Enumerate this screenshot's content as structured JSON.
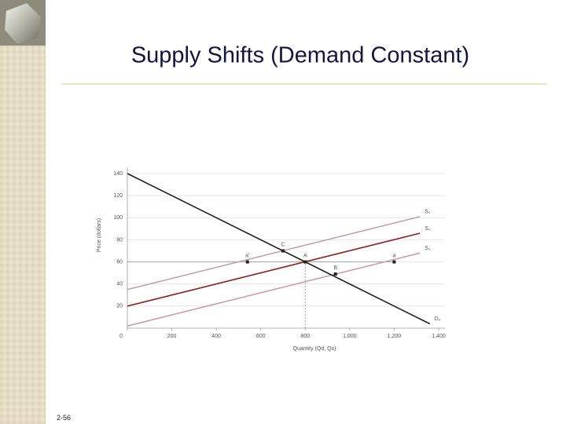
{
  "slide": {
    "title": "Supply Shifts (Demand Constant)",
    "page_number": "2-56"
  },
  "chart_data": {
    "type": "line",
    "x_label": "Quantity (Qd, Qs)",
    "y_label": "Price (dollars)",
    "xlim": [
      0,
      1400
    ],
    "ylim": [
      0,
      140
    ],
    "xticks": [
      0,
      200,
      400,
      600,
      800,
      {
        "value": 1000,
        "label": "1,000"
      },
      {
        "value": 1200,
        "label": "1,200"
      },
      {
        "value": 1400,
        "label": "1,400"
      }
    ],
    "yticks": [
      20,
      40,
      60,
      80,
      100,
      120,
      140
    ],
    "grid": true,
    "series": [
      {
        "color": "#9a9a9a",
        "x": [
          0,
          1200
        ],
        "values": [
          60,
          60
        ]
      },
      {
        "color": "#9a9a9a",
        "dashed": true,
        "x": [
          800,
          800
        ],
        "values": [
          0,
          60
        ]
      },
      {
        "name": "S₂",
        "color": "#c9a0a0",
        "x": [
          0,
          1316
        ],
        "values": [
          35,
          101
        ]
      },
      {
        "name": "S₀",
        "color": "#8b1a1a",
        "x": [
          0,
          1316
        ],
        "values": [
          20,
          86
        ]
      },
      {
        "name": "S₁",
        "color": "#c9a0a0",
        "x": [
          0,
          1316
        ],
        "values": [
          2,
          68
        ]
      },
      {
        "name": "D₀",
        "color": "#222222",
        "x": [
          0,
          1360
        ],
        "values": [
          140,
          4
        ]
      }
    ],
    "points": [
      {
        "label": "C",
        "x": 700,
        "y": 70
      },
      {
        "label": "A",
        "x": 800,
        "y": 60
      },
      {
        "label": "B",
        "x": 936,
        "y": 49
      },
      {
        "label": "a'",
        "x": 540,
        "y": 60
      },
      {
        "label": "a",
        "x": 1200,
        "y": 60
      }
    ]
  }
}
